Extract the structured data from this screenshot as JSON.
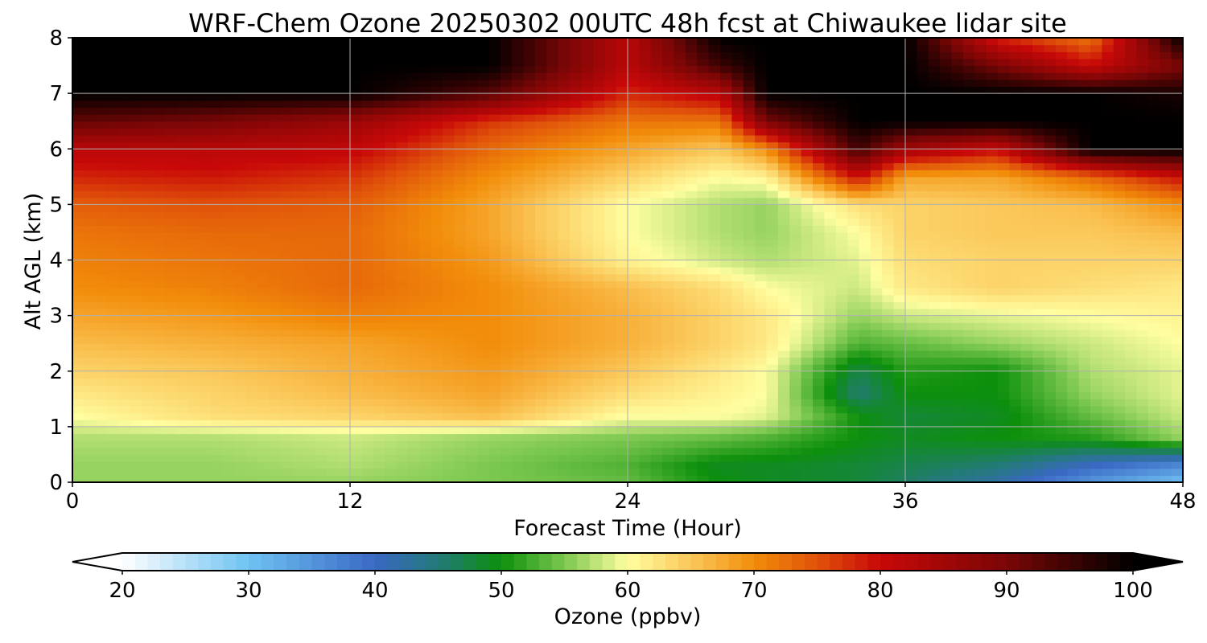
{
  "chart_data": {
    "type": "heatmap",
    "title": "WRF-Chem Ozone  20250302 00UTC 48h fcst at Chiwaukee lidar site",
    "xlabel": "Forecast Time (Hour)",
    "ylabel": "Alt AGL (km)",
    "xlim": [
      0,
      48
    ],
    "ylim": [
      0,
      8
    ],
    "x_ticks": [
      0,
      12,
      24,
      36,
      48
    ],
    "y_ticks": [
      0,
      1,
      2,
      3,
      4,
      5,
      6,
      7,
      8
    ],
    "grid": true,
    "colorbar": {
      "label": "Ozone  (ppbv)",
      "orientation": "horizontal",
      "extend": "both",
      "range": [
        20,
        100
      ],
      "ticks": [
        20,
        30,
        40,
        50,
        60,
        70,
        80,
        90,
        100
      ],
      "stops": [
        {
          "value": 20,
          "color": "#ffffff"
        },
        {
          "value": 30,
          "color": "#6fc3f2"
        },
        {
          "value": 40,
          "color": "#3a68c4"
        },
        {
          "value": 45,
          "color": "#237a78"
        },
        {
          "value": 50,
          "color": "#0c8f0c"
        },
        {
          "value": 55,
          "color": "#7cc850"
        },
        {
          "value": 60,
          "color": "#fffea0"
        },
        {
          "value": 65,
          "color": "#fbc85a"
        },
        {
          "value": 70,
          "color": "#f28d0a"
        },
        {
          "value": 75,
          "color": "#e0520a"
        },
        {
          "value": 80,
          "color": "#c80808"
        },
        {
          "value": 90,
          "color": "#7a0606"
        },
        {
          "value": 100,
          "color": "#000000"
        }
      ]
    },
    "time_hours": [
      0,
      6,
      12,
      18,
      24,
      28,
      30,
      34,
      36,
      40,
      44,
      48
    ],
    "altitudes_km": [
      0,
      0.3,
      0.8,
      1.2,
      1.6,
      2.0,
      2.5,
      3.0,
      3.5,
      4.0,
      4.5,
      5.0,
      5.5,
      6.0,
      6.5,
      7.0,
      7.5,
      8.0
    ],
    "ozone_ppbv": [
      [
        56,
        56,
        56,
        55,
        54,
        50,
        49,
        48,
        46,
        42,
        35,
        30
      ],
      [
        56,
        56,
        57,
        55,
        53,
        49,
        49,
        48,
        47,
        45,
        40,
        36
      ],
      [
        57,
        57,
        58,
        56,
        55,
        54,
        53,
        50,
        49,
        50,
        51,
        56
      ],
      [
        60,
        63,
        64,
        66,
        60,
        60,
        59,
        50,
        48,
        49,
        54,
        58
      ],
      [
        62,
        64,
        66,
        68,
        63,
        61,
        60,
        45,
        50,
        50,
        56,
        59
      ],
      [
        64,
        65,
        67,
        69,
        65,
        62,
        60,
        47,
        51,
        50,
        57,
        59
      ],
      [
        66,
        67,
        68,
        70,
        67,
        64,
        62,
        53,
        54,
        56,
        58,
        60
      ],
      [
        68,
        69,
        71,
        70,
        67,
        64,
        62,
        56,
        58,
        59,
        60,
        61
      ],
      [
        70,
        71,
        73,
        70,
        66,
        63,
        60,
        58,
        62,
        64,
        63,
        62
      ],
      [
        71,
        72,
        73,
        69,
        61,
        58,
        57,
        59,
        63,
        64,
        64,
        64
      ],
      [
        72,
        73,
        73,
        68,
        60,
        57,
        56,
        60,
        64,
        65,
        65,
        66
      ],
      [
        74,
        75,
        74,
        68,
        60,
        57,
        56,
        63,
        64,
        65,
        66,
        70
      ],
      [
        78,
        79,
        77,
        70,
        64,
        60,
        61,
        80,
        68,
        68,
        73,
        80
      ],
      [
        82,
        82,
        81,
        73,
        68,
        65,
        70,
        95,
        85,
        80,
        100,
        100
      ],
      [
        92,
        90,
        86,
        77,
        72,
        72,
        90,
        100,
        100,
        100,
        100,
        100
      ],
      [
        100,
        100,
        100,
        93,
        78,
        82,
        100,
        100,
        100,
        100,
        100,
        98
      ],
      [
        100,
        100,
        100,
        100,
        82,
        95,
        100,
        100,
        100,
        90,
        80,
        90
      ],
      [
        100,
        100,
        100,
        100,
        82,
        100,
        100,
        100,
        100,
        78,
        72,
        100
      ]
    ]
  }
}
